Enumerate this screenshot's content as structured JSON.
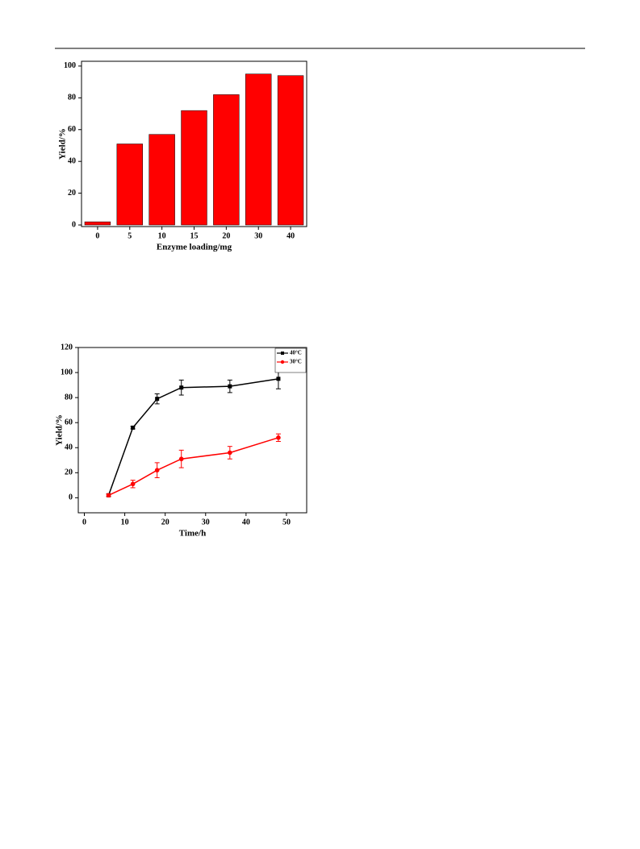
{
  "chart_data": [
    {
      "type": "bar",
      "x_label": "Enzyme loading/mg",
      "y_label": "Yield/%",
      "categories": [
        "0",
        "5",
        "10",
        "15",
        "20",
        "30",
        "40"
      ],
      "values": [
        2,
        51,
        57,
        72,
        82,
        95,
        94
      ],
      "color": "#ff0000",
      "ylim": [
        -1,
        103
      ],
      "yticks": [
        0,
        20,
        40,
        60,
        80,
        100
      ]
    },
    {
      "type": "line",
      "x_label": "Time/h",
      "y_label": "Yield/%",
      "xlim": [
        -1.5,
        55
      ],
      "xticks": [
        0,
        10,
        20,
        30,
        40,
        50
      ],
      "ylim": [
        -12,
        120
      ],
      "yticks": [
        0,
        20,
        40,
        60,
        80,
        100,
        120
      ],
      "legend": "top-right",
      "x": [
        6,
        12,
        18,
        24,
        36,
        48
      ],
      "series": [
        {
          "name": "40°C",
          "color": "#000000",
          "marker": "square",
          "values": [
            2,
            56,
            79,
            88,
            89,
            95
          ],
          "errors": [
            1,
            1,
            4,
            6,
            5,
            8
          ]
        },
        {
          "name": "30°C",
          "color": "#ff0000",
          "marker": "circle",
          "values": [
            2,
            11,
            22,
            31,
            36,
            48
          ],
          "errors": [
            1,
            3,
            6,
            7,
            5,
            3
          ]
        }
      ]
    }
  ]
}
